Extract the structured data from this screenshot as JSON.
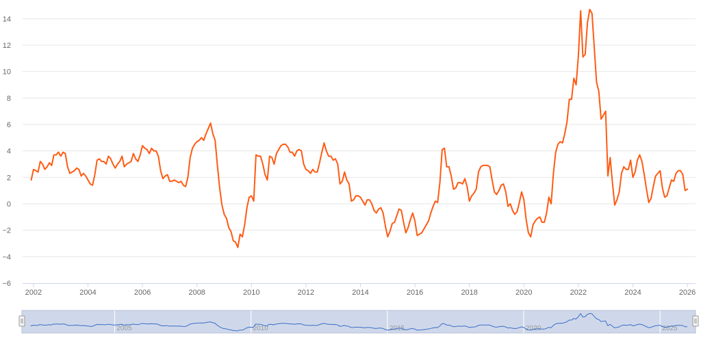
{
  "colors": {
    "series": "#ff5a12",
    "navigator_series": "#3a6ec8",
    "navigator_fill": "#cfd8ea",
    "grid": "#e6e6e6",
    "axis_line": "#ccd6eb",
    "label": "#666666"
  },
  "chart_data": {
    "type": "line",
    "title": "",
    "xlabel": "",
    "ylabel": "",
    "x_start": 2001.917,
    "x_step_months": 1,
    "xlim": [
      2001.6,
      2026.3
    ],
    "ylim": [
      -6,
      15
    ],
    "grid": true,
    "legend": "none",
    "x_tick_labels": [
      "2002",
      "2004",
      "2006",
      "2008",
      "2010",
      "2012",
      "2014",
      "2016",
      "2018",
      "2020",
      "2022",
      "2024",
      "2026"
    ],
    "y_tick_labels": [
      "14",
      "12",
      "10",
      "8",
      "6",
      "4",
      "2",
      "0",
      "−2",
      "−4",
      "−6"
    ],
    "values": [
      1.8,
      2.6,
      2.5,
      2.4,
      3.2,
      3.0,
      2.6,
      2.8,
      3.1,
      2.9,
      3.7,
      3.7,
      3.9,
      3.6,
      3.9,
      3.8,
      2.8,
      2.3,
      2.4,
      2.5,
      2.7,
      2.6,
      2.1,
      2.3,
      2.1,
      1.8,
      1.5,
      1.4,
      2.2,
      3.3,
      3.4,
      3.2,
      3.2,
      3.0,
      3.6,
      3.4,
      3.0,
      2.7,
      3.0,
      3.2,
      3.6,
      2.8,
      3.0,
      3.1,
      3.2,
      3.8,
      3.4,
      3.2,
      3.7,
      4.4,
      4.2,
      4.1,
      3.8,
      4.2,
      4.0,
      4.0,
      3.6,
      2.5,
      1.9,
      2.1,
      2.2,
      1.7,
      1.7,
      1.8,
      1.7,
      1.6,
      1.7,
      1.4,
      1.3,
      2.0,
      3.5,
      4.2,
      4.5,
      4.7,
      4.8,
      5.0,
      4.8,
      5.3,
      5.7,
      6.1,
      5.3,
      4.8,
      2.9,
      1.2,
      -0.1,
      -0.8,
      -1.1,
      -1.8,
      -2.1,
      -2.8,
      -2.9,
      -3.3,
      -2.3,
      -2.5,
      -1.6,
      -0.3,
      0.5,
      0.6,
      0.2,
      3.7,
      3.6,
      3.6,
      3.0,
      2.2,
      1.8,
      3.6,
      3.5,
      3.0,
      3.8,
      4.1,
      4.4,
      4.5,
      4.5,
      4.3,
      3.9,
      3.9,
      3.6,
      4.0,
      4.1,
      4.0,
      3.0,
      2.6,
      2.5,
      2.3,
      2.6,
      2.4,
      2.4,
      3.1,
      3.9,
      4.6,
      4.0,
      3.6,
      3.6,
      3.3,
      3.4,
      3.0,
      1.5,
      1.7,
      2.4,
      1.8,
      1.5,
      0.2,
      0.3,
      0.6,
      0.6,
      0.5,
      0.2,
      -0.1,
      0.3,
      0.3,
      0.0,
      -0.5,
      -0.7,
      -0.4,
      -0.3,
      -0.7,
      -1.7,
      -2.5,
      -2.1,
      -1.5,
      -1.4,
      -0.9,
      -0.4,
      -0.5,
      -1.4,
      -2.2,
      -1.8,
      -1.2,
      -0.7,
      -1.3,
      -2.4,
      -2.3,
      -2.2,
      -1.9,
      -1.6,
      -1.3,
      -0.7,
      -0.2,
      0.2,
      0.1,
      1.6,
      4.1,
      4.2,
      2.8,
      2.8,
      2.1,
      1.1,
      1.2,
      1.6,
      1.6,
      1.5,
      1.9,
      1.3,
      0.2,
      0.6,
      0.8,
      1.1,
      2.4,
      2.8,
      2.9,
      2.9,
      2.9,
      2.8,
      1.8,
      0.9,
      0.7,
      1.0,
      1.4,
      1.5,
      0.9,
      -0.2,
      0.0,
      -0.5,
      -0.8,
      -0.6,
      0.1,
      0.9,
      0.3,
      -1.2,
      -2.2,
      -2.5,
      -1.6,
      -1.3,
      -1.1,
      -1.0,
      -1.4,
      -1.4,
      -0.7,
      0.5,
      0.0,
      2.3,
      3.9,
      4.5,
      4.7,
      4.6,
      5.3,
      6.2,
      7.9,
      7.9,
      9.5,
      9.0,
      11.2,
      14.6,
      11.1,
      11.3,
      13.7,
      14.7,
      14.4,
      11.8,
      9.2,
      8.5,
      6.4,
      6.7,
      7.0,
      2.1,
      3.5,
      1.6,
      -0.1,
      0.3,
      0.9,
      2.3,
      2.8,
      2.6,
      2.6,
      3.3,
      2.0,
      2.4,
      3.3,
      3.7,
      3.2,
      2.2,
      1.1,
      0.1,
      0.4,
      1.3,
      2.1,
      2.3,
      2.5,
      1.2,
      0.5,
      0.6,
      1.2,
      1.8,
      1.7,
      2.3,
      2.5,
      2.5,
      2.2,
      1.0,
      1.1
    ]
  },
  "navigator": {
    "tick_labels": [
      "2005",
      "2010",
      "2015",
      "2020",
      "2025"
    ]
  }
}
